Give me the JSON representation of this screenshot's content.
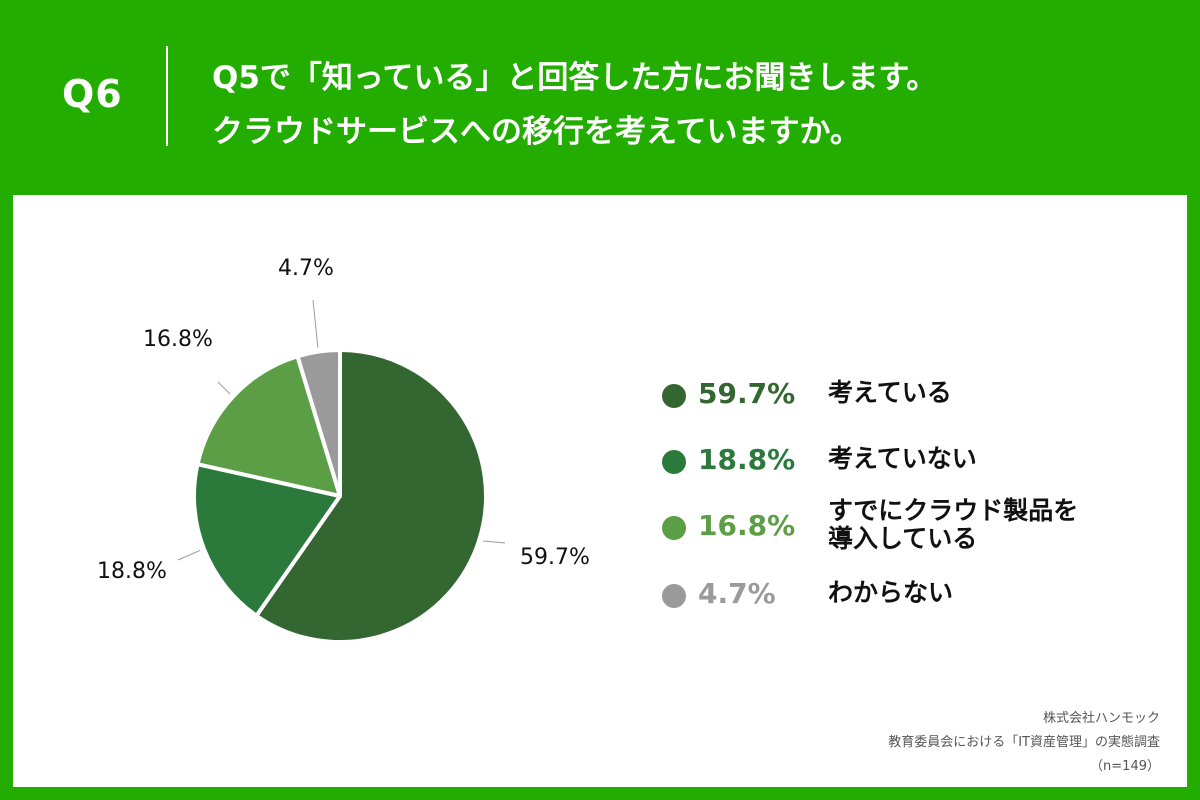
{
  "header": {
    "question_number": "Q6",
    "title_line1": "Q5で「知っている」と回答した方にお聞きします。",
    "title_line2": "クラウドサービスへの移行を考えていますか。"
  },
  "colors": {
    "header_bg": "#22ad00",
    "panel_bg": "#ffffff",
    "slice_1": "#336630",
    "slice_2": "#2b7a3c",
    "slice_3": "#5c9e45",
    "slice_4": "#9a9a9a"
  },
  "chart_data": {
    "type": "pie",
    "start_angle": "12 o'clock",
    "direction": "clockwise",
    "slices": [
      {
        "label": "考えている",
        "value": 59.7,
        "value_label": "59.7%",
        "color": "#336630"
      },
      {
        "label": "考えていない",
        "value": 18.8,
        "value_label": "18.8%",
        "color": "#2b7a3c"
      },
      {
        "label": "すでにクラウド製品を導入している",
        "value": 16.8,
        "value_label": "16.8%",
        "color": "#5c9e45"
      },
      {
        "label": "わからない",
        "value": 4.7,
        "value_label": "4.7%",
        "color": "#9a9a9a"
      }
    ],
    "legend": [
      {
        "value_label": "59.7%",
        "lines": [
          "考えている"
        ]
      },
      {
        "value_label": "18.8%",
        "lines": [
          "考えていない"
        ]
      },
      {
        "value_label": "16.8%",
        "lines": [
          "すでにクラウド製品を",
          "導入している"
        ]
      },
      {
        "value_label": "4.7%",
        "lines": [
          "わからない"
        ]
      }
    ]
  },
  "source": {
    "company": "株式会社ハンモック",
    "survey": "教育委員会における「IT資産管理」の実態調査",
    "sample": "（n=149）"
  }
}
